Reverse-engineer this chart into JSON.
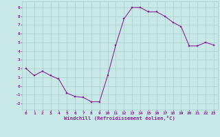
{
  "x": [
    0,
    1,
    2,
    3,
    4,
    5,
    6,
    7,
    8,
    9,
    10,
    11,
    12,
    13,
    14,
    15,
    16,
    17,
    18,
    19,
    20,
    21,
    22,
    23
  ],
  "y": [
    2.0,
    1.2,
    1.7,
    1.2,
    0.8,
    -0.8,
    -1.2,
    -1.3,
    -1.8,
    -1.8,
    1.2,
    4.7,
    7.7,
    9.0,
    9.0,
    8.5,
    8.5,
    8.0,
    7.3,
    6.8,
    4.6,
    4.6,
    5.0,
    4.7
  ],
  "xlabel": "Windchill (Refroidissement éolien,°C)",
  "xlim": [
    -0.5,
    23.5
  ],
  "ylim": [
    -2.7,
    9.7
  ],
  "xticks": [
    0,
    1,
    2,
    3,
    4,
    5,
    6,
    7,
    8,
    9,
    10,
    11,
    12,
    13,
    14,
    15,
    16,
    17,
    18,
    19,
    20,
    21,
    22,
    23
  ],
  "yticks": [
    -2,
    -1,
    0,
    1,
    2,
    3,
    4,
    5,
    6,
    7,
    8,
    9
  ],
  "line_color": "#882299",
  "bg_color": "#c8e8e8",
  "grid_color": "#a8cccc",
  "label_color": "#882299"
}
